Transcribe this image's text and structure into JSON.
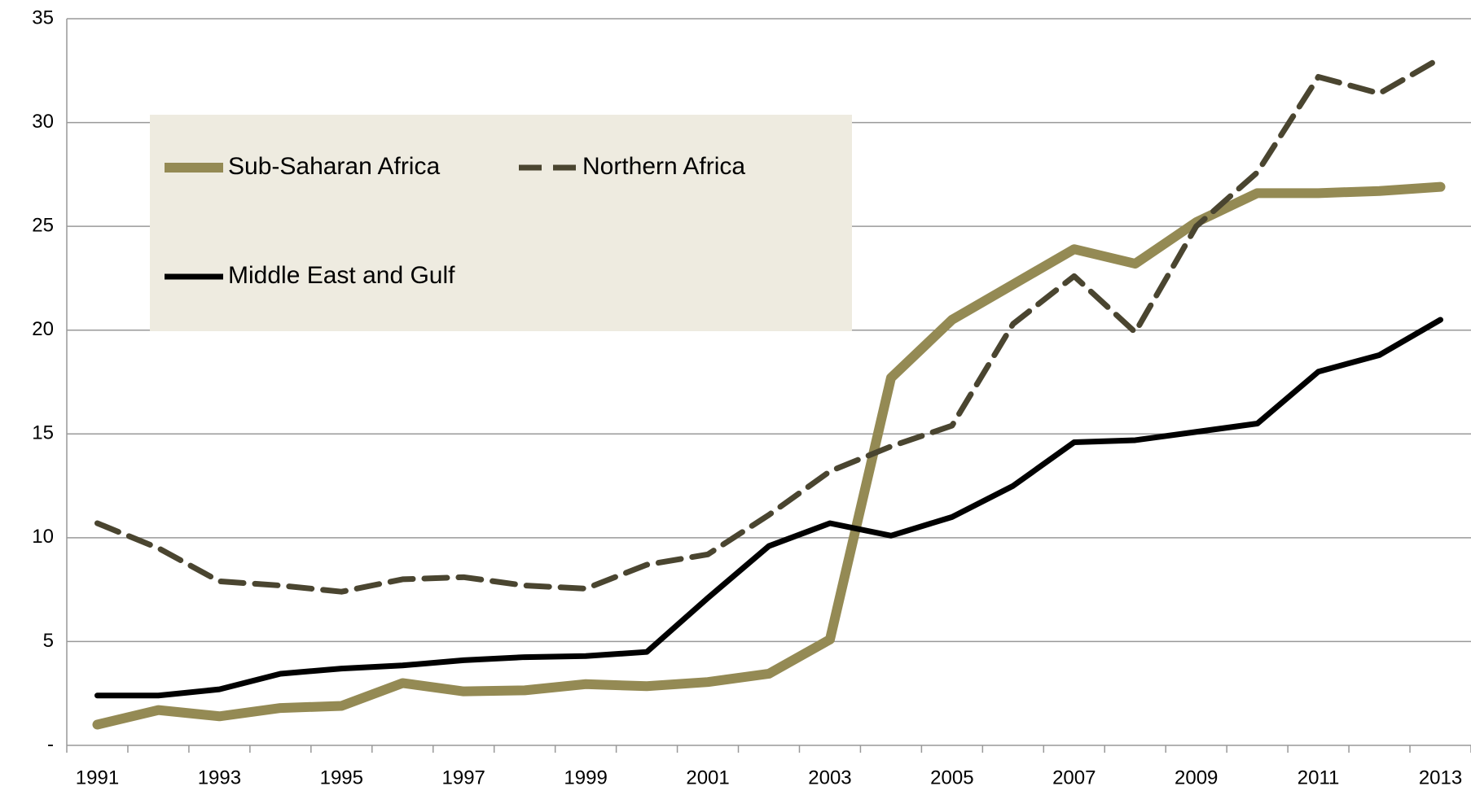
{
  "chart_data": {
    "type": "line",
    "categories": [
      "1991",
      null,
      "1993",
      null,
      "1995",
      null,
      "1997",
      null,
      "1999",
      null,
      "2001",
      null,
      "2003",
      null,
      "2005",
      null,
      "2007",
      null,
      "2009",
      null,
      "2011",
      null,
      "2013"
    ],
    "series": [
      {
        "name": "Sub-Saharan Africa",
        "color": "#948a54",
        "dash": "solid",
        "values": [
          1.0,
          1.7,
          1.4,
          1.8,
          1.9,
          3.0,
          2.6,
          2.65,
          2.95,
          2.85,
          3.05,
          3.45,
          5.1,
          17.7,
          20.5,
          22.2,
          23.9,
          23.2,
          25.2,
          26.6,
          26.6,
          26.7,
          26.9
        ]
      },
      {
        "name": "Northern Africa",
        "color": "#4a4530",
        "dash": "dashed",
        "values": [
          10.7,
          9.5,
          7.9,
          7.7,
          7.4,
          8.0,
          8.1,
          7.7,
          7.55,
          8.7,
          9.2,
          11.1,
          13.2,
          14.4,
          15.4,
          20.3,
          22.6,
          19.9,
          25.0,
          27.6,
          32.2,
          31.4,
          33.1
        ]
      },
      {
        "name": "Middle East and Gulf",
        "color": "#000000",
        "dash": "solid",
        "values": [
          2.4,
          2.4,
          2.7,
          3.45,
          3.7,
          3.85,
          4.1,
          4.25,
          4.3,
          4.5,
          7.1,
          9.6,
          10.7,
          10.1,
          11.0,
          12.5,
          14.6,
          14.7,
          15.1,
          15.5,
          18.0,
          18.8,
          20.5
        ]
      }
    ],
    "ylim": [
      0,
      35
    ],
    "yticks": [
      {
        "value": 0,
        "label": "-"
      },
      5,
      10,
      15,
      20,
      25,
      30,
      35
    ],
    "grid": true
  }
}
